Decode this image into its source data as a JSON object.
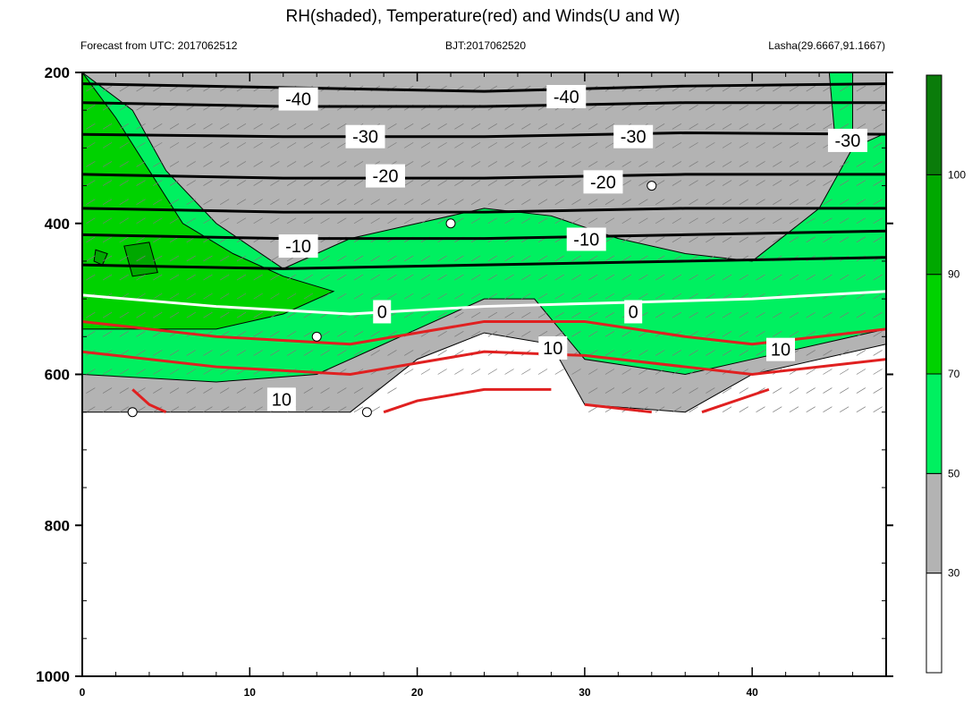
{
  "chart_data": {
    "type": "contour",
    "title": "RH(shaded), Temperature(red) and Winds(U and W)",
    "subtitle_left": "Forecast from UTC: 2017062512",
    "subtitle_center": "BJT:2017062520",
    "subtitle_right": "Lasha(29.6667,91.1667)",
    "x_ticks": [
      "0",
      "10",
      "20",
      "30",
      "40"
    ],
    "x_tick_values": [
      0,
      10,
      20,
      30,
      40
    ],
    "xlim": [
      0,
      48
    ],
    "y_ticks": [
      "200",
      "400",
      "600",
      "800",
      "1000"
    ],
    "y_tick_values": [
      200,
      400,
      600,
      800,
      1000
    ],
    "ylim": [
      1000,
      200
    ],
    "y_reversed": true,
    "colorbar": {
      "levels": [
        "30",
        "50",
        "70",
        "90",
        "100"
      ],
      "level_values": [
        30,
        50,
        70,
        90,
        100
      ],
      "colors": [
        "#ffffff",
        "#b3b3b3",
        "#00f060",
        "#00d200",
        "#00a800",
        "#0a7c0a"
      ]
    },
    "series": [
      {
        "role": "rh-fill-30",
        "color": "#b3b3b3",
        "points": [
          [
            0,
            200
          ],
          [
            48,
            200
          ],
          [
            48,
            560
          ],
          [
            40,
            600
          ],
          [
            36,
            650
          ],
          [
            30,
            640
          ],
          [
            28,
            560
          ],
          [
            24,
            545
          ],
          [
            20,
            580
          ],
          [
            16,
            650
          ],
          [
            0,
            650
          ]
        ]
      },
      {
        "role": "rh-fill-50",
        "color": "#00f060",
        "points": [
          [
            0,
            200
          ],
          [
            3,
            250
          ],
          [
            5,
            330
          ],
          [
            8,
            400
          ],
          [
            12,
            460
          ],
          [
            16,
            420
          ],
          [
            20,
            400
          ],
          [
            24,
            380
          ],
          [
            28,
            390
          ],
          [
            32,
            420
          ],
          [
            36,
            440
          ],
          [
            40,
            450
          ],
          [
            44,
            380
          ],
          [
            46,
            300
          ],
          [
            48,
            280
          ],
          [
            48,
            540
          ],
          [
            42,
            570
          ],
          [
            36,
            600
          ],
          [
            30,
            580
          ],
          [
            27,
            500
          ],
          [
            24,
            500
          ],
          [
            18,
            560
          ],
          [
            14,
            600
          ],
          [
            8,
            610
          ],
          [
            0,
            600
          ]
        ]
      },
      {
        "role": "rh-fill-70",
        "color": "#00d200",
        "points": [
          [
            0,
            200
          ],
          [
            2,
            260
          ],
          [
            4,
            330
          ],
          [
            6,
            400
          ],
          [
            9,
            440
          ],
          [
            12,
            470
          ],
          [
            15,
            490
          ],
          [
            12,
            520
          ],
          [
            8,
            540
          ],
          [
            4,
            540
          ],
          [
            0,
            540
          ]
        ]
      },
      {
        "role": "rh-fill-90",
        "color": "#00a800",
        "points": [
          [
            2.5,
            430
          ],
          [
            4,
            425
          ],
          [
            4.5,
            465
          ],
          [
            3,
            470
          ]
        ]
      },
      {
        "role": "rh-fill-90",
        "color": "#00a800",
        "points": [
          [
            0.8,
            435
          ],
          [
            1.5,
            440
          ],
          [
            1.2,
            455
          ],
          [
            0.7,
            450
          ]
        ]
      },
      {
        "role": "rh-fill-50",
        "color": "#00f060",
        "points": [
          [
            44.6,
            200
          ],
          [
            46,
            200
          ],
          [
            46,
            300
          ],
          [
            45,
            300
          ]
        ]
      },
      {
        "role": "temp-line",
        "color": "#000000",
        "label": "-40",
        "points": [
          [
            0,
            215
          ],
          [
            12,
            220
          ],
          [
            24,
            225
          ],
          [
            36,
            218
          ],
          [
            48,
            215
          ]
        ]
      },
      {
        "role": "temp-line",
        "color": "#000000",
        "points": [
          [
            0,
            240
          ],
          [
            12,
            245
          ],
          [
            24,
            245
          ],
          [
            36,
            240
          ],
          [
            48,
            240
          ]
        ]
      },
      {
        "role": "temp-line",
        "color": "#000000",
        "label": "-30",
        "points": [
          [
            0,
            282
          ],
          [
            12,
            285
          ],
          [
            24,
            285
          ],
          [
            36,
            280
          ],
          [
            48,
            282
          ]
        ]
      },
      {
        "role": "temp-line",
        "color": "#000000",
        "label": "-20",
        "points": [
          [
            0,
            335
          ],
          [
            12,
            340
          ],
          [
            24,
            340
          ],
          [
            36,
            335
          ],
          [
            48,
            335
          ]
        ]
      },
      {
        "role": "temp-line",
        "color": "#000000",
        "points": [
          [
            0,
            380
          ],
          [
            12,
            385
          ],
          [
            24,
            385
          ],
          [
            36,
            380
          ],
          [
            48,
            380
          ]
        ]
      },
      {
        "role": "temp-line",
        "color": "#000000",
        "label": "-10",
        "points": [
          [
            0,
            415
          ],
          [
            12,
            420
          ],
          [
            24,
            420
          ],
          [
            36,
            415
          ],
          [
            48,
            410
          ]
        ]
      },
      {
        "role": "temp-line",
        "color": "#000000",
        "points": [
          [
            0,
            455
          ],
          [
            12,
            460
          ],
          [
            24,
            455
          ],
          [
            36,
            450
          ],
          [
            48,
            445
          ]
        ]
      },
      {
        "role": "temp-line",
        "color": "#ffffff",
        "label": "0",
        "points": [
          [
            0,
            495
          ],
          [
            8,
            510
          ],
          [
            16,
            520
          ],
          [
            24,
            510
          ],
          [
            32,
            505
          ],
          [
            40,
            500
          ],
          [
            48,
            490
          ]
        ]
      },
      {
        "role": "temp-line",
        "color": "#e02020",
        "points": [
          [
            0,
            530
          ],
          [
            8,
            550
          ],
          [
            16,
            560
          ],
          [
            24,
            530
          ],
          [
            30,
            530
          ],
          [
            36,
            550
          ],
          [
            40,
            560
          ],
          [
            48,
            540
          ]
        ]
      },
      {
        "role": "temp-line",
        "color": "#e02020",
        "label": "10",
        "points": [
          [
            0,
            570
          ],
          [
            8,
            590
          ],
          [
            16,
            600
          ],
          [
            24,
            570
          ],
          [
            30,
            575
          ],
          [
            36,
            590
          ],
          [
            40,
            600
          ],
          [
            48,
            580
          ]
        ]
      },
      {
        "role": "temp-line",
        "color": "#e02020",
        "points": [
          [
            3,
            620
          ],
          [
            4,
            640
          ],
          [
            5,
            650
          ]
        ]
      },
      {
        "role": "temp-line",
        "color": "#e02020",
        "points": [
          [
            18,
            650
          ],
          [
            20,
            635
          ],
          [
            24,
            620
          ],
          [
            28,
            620
          ]
        ]
      },
      {
        "role": "temp-line",
        "color": "#e02020",
        "points": [
          [
            30,
            640
          ],
          [
            34,
            650
          ]
        ]
      },
      {
        "role": "temp-line",
        "color": "#e02020",
        "points": [
          [
            37,
            650
          ],
          [
            41,
            620
          ]
        ]
      }
    ],
    "contour_labels": [
      {
        "text": "-40",
        "x": 12.9,
        "y": 235
      },
      {
        "text": "-40",
        "x": 28.9,
        "y": 232
      },
      {
        "text": "-30",
        "x": 16.9,
        "y": 285
      },
      {
        "text": "-30",
        "x": 32.9,
        "y": 285
      },
      {
        "text": "-30",
        "x": 45.7,
        "y": 290
      },
      {
        "text": "-20",
        "x": 18.1,
        "y": 337
      },
      {
        "text": "-20",
        "x": 31.1,
        "y": 345
      },
      {
        "text": "-10",
        "x": 12.9,
        "y": 430
      },
      {
        "text": "-10",
        "x": 30.1,
        "y": 421
      },
      {
        "text": "0",
        "x": 17.9,
        "y": 517
      },
      {
        "text": "0",
        "x": 32.9,
        "y": 517
      },
      {
        "text": "10",
        "x": 28.1,
        "y": 565
      },
      {
        "text": "10",
        "x": 41.7,
        "y": 567
      },
      {
        "text": "10",
        "x": 11.9,
        "y": 633
      }
    ],
    "calm_markers": [
      [
        3,
        650
      ],
      [
        14,
        550
      ],
      [
        17,
        650
      ],
      [
        22,
        400
      ],
      [
        34,
        350
      ]
    ]
  }
}
